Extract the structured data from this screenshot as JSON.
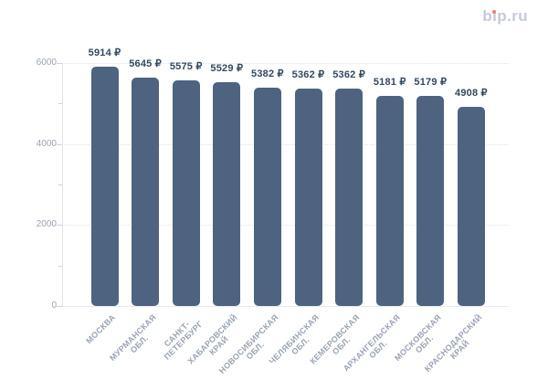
{
  "logo": {
    "text": "bip.ru",
    "colors": {
      "text": "#c6cad8",
      "dot": "#ee7e68"
    }
  },
  "chart_data": {
    "type": "bar",
    "title": "",
    "xlabel": "",
    "ylabel": "",
    "categories": [
      "МОСКВА",
      "МУРМАНСКАЯ\nОБЛ.",
      "САНКТ-\nПЕТЕРБУРГ",
      "ХАБАРОВСКИЙ\nКРАЙ",
      "НОВОСИБИРСКАЯ\nОБЛ.",
      "ЧЕЛЯБИНСКАЯ\nОБЛ.",
      "КЕМЕРОВСКАЯ\nОБЛ.",
      "АРХАНГЕЛЬСКАЯ\nОБЛ.",
      "МОСКОВСКАЯ\nОБЛ.",
      "КРАСНОДАРСКИЙ\nКРАЙ"
    ],
    "values": [
      5914,
      5645,
      5575,
      5529,
      5382,
      5362,
      5362,
      5181,
      5179,
      4908
    ],
    "value_suffix": "₽",
    "value_labels": [
      "5914 ₽",
      "5645 ₽",
      "5575 ₽",
      "5529 ₽",
      "5382 ₽",
      "5362 ₽",
      "5362 ₽",
      "5181 ₽",
      "5179 ₽",
      "4908 ₽"
    ],
    "ylim": [
      0,
      6000
    ],
    "yticks": [
      0,
      2000,
      4000,
      6000
    ],
    "yticks_minor": [
      1000,
      3000,
      5000
    ],
    "ytick_labels": [
      "0",
      "2000",
      "4000",
      "6000"
    ],
    "grid": "horizontal dotted at major ticks",
    "legend": "none",
    "colors": {
      "bar": "#4d6380",
      "value_label": "#33495f",
      "axis_label": "#9aa2b2",
      "category_label": "#9aa3b4",
      "gridline": "#dfe3e9",
      "axis_line": "#e1e4ea"
    }
  }
}
